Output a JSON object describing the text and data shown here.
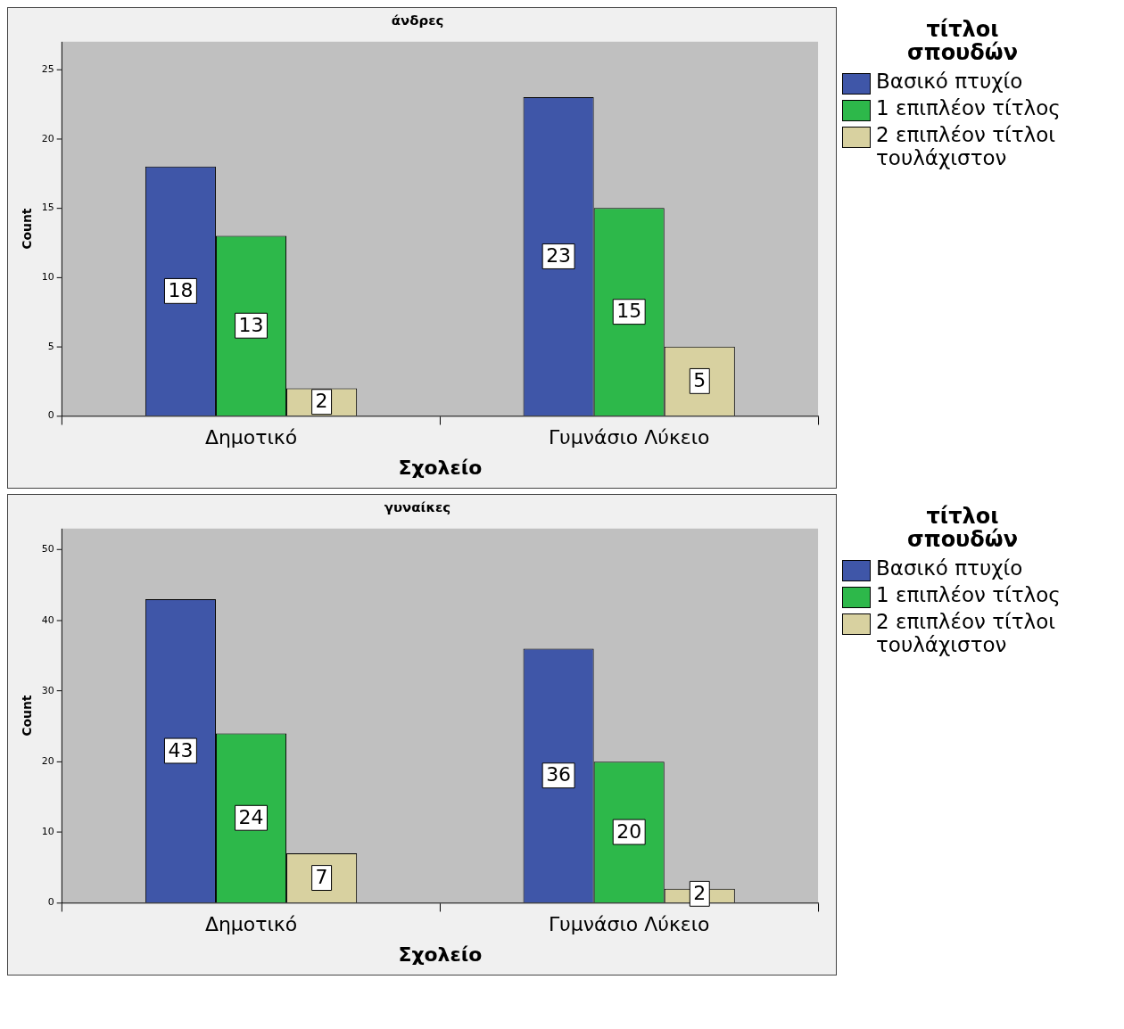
{
  "chart_data": [
    {
      "type": "bar",
      "title": "άνδρες",
      "xlabel": "Σχολείο",
      "ylabel": "Count",
      "legend_title": "τίτλοι σπουδών",
      "legend": "top right",
      "data_labels": true,
      "categories": [
        "Δημοτικό",
        "Γυμνάσιο Λύκειο"
      ],
      "ylim": [
        0,
        27
      ],
      "yticks": [
        0,
        5,
        10,
        15,
        20,
        25
      ],
      "series": [
        {
          "name": "Βασικό πτυχίο",
          "color": "#3f56a8",
          "values": [
            18,
            23
          ]
        },
        {
          "name": "1 επιπλέον τίτλος",
          "color": "#2db84a",
          "values": [
            13,
            15
          ]
        },
        {
          "name": "2 επιπλέον τίτλοι τουλάχιστον",
          "color": "#d8d1a0",
          "values": [
            2,
            5
          ]
        }
      ]
    },
    {
      "type": "bar",
      "title": "γυναίκες",
      "xlabel": "Σχολείο",
      "ylabel": "Count",
      "legend_title": "τίτλοι σπουδών",
      "legend": "top right",
      "data_labels": true,
      "categories": [
        "Δημοτικό",
        "Γυμνάσιο Λύκειο"
      ],
      "ylim": [
        0,
        53
      ],
      "yticks": [
        0,
        10,
        20,
        30,
        40,
        50
      ],
      "series": [
        {
          "name": "Βασικό πτυχίο",
          "color": "#3f56a8",
          "values": [
            43,
            36
          ]
        },
        {
          "name": "1 επιπλέον τίτλος",
          "color": "#2db84a",
          "values": [
            24,
            20
          ]
        },
        {
          "name": "2 επιπλέον τίτλοι τουλάχιστον",
          "color": "#d8d1a0",
          "values": [
            7,
            2
          ]
        }
      ]
    }
  ]
}
